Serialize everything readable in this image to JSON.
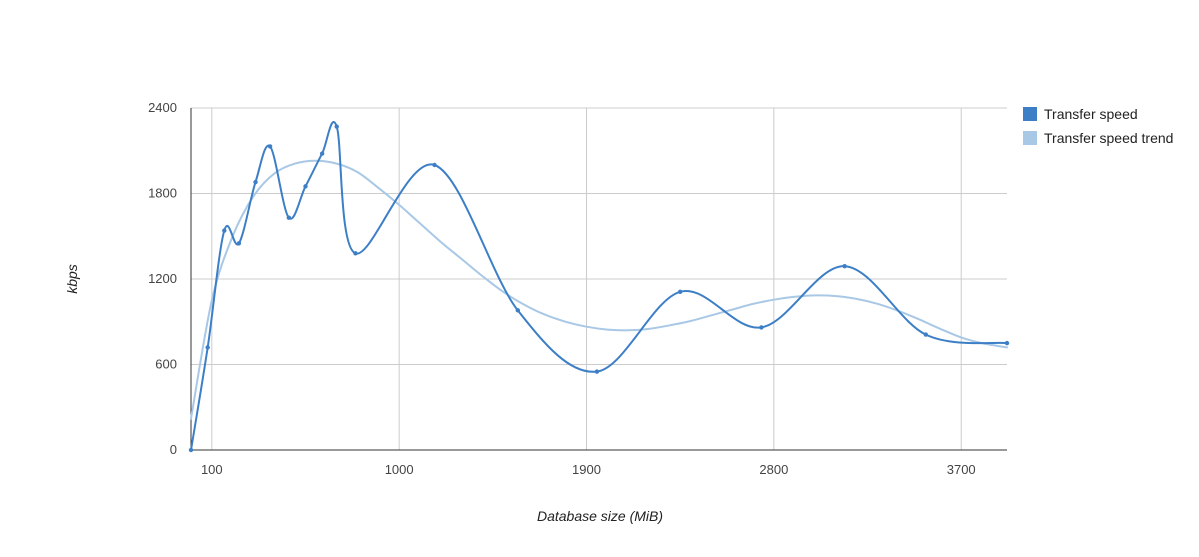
{
  "chart_data": {
    "type": "line",
    "title": "",
    "xlabel": "Database size (MiB)",
    "ylabel": "kbps",
    "xlim": [
      0,
      3920
    ],
    "ylim": [
      0,
      2400
    ],
    "x_ticks": [
      100,
      1000,
      1900,
      2800,
      3700
    ],
    "y_ticks": [
      0,
      600,
      1200,
      1800,
      2400
    ],
    "grid": true,
    "legend_position": "right",
    "series": [
      {
        "name": "Transfer speed",
        "color": "#3d7fc6",
        "curve": "smooth",
        "markers": true,
        "points": [
          [
            0,
            0
          ],
          [
            80,
            720
          ],
          [
            160,
            1540
          ],
          [
            230,
            1450
          ],
          [
            310,
            1880
          ],
          [
            380,
            2130
          ],
          [
            470,
            1630
          ],
          [
            550,
            1850
          ],
          [
            630,
            2080
          ],
          [
            700,
            2270
          ],
          [
            790,
            1380
          ],
          [
            1170,
            2000
          ],
          [
            1570,
            980
          ],
          [
            1950,
            550
          ],
          [
            2350,
            1110
          ],
          [
            2740,
            860
          ],
          [
            3140,
            1290
          ],
          [
            3530,
            810
          ],
          [
            3920,
            750
          ]
        ]
      },
      {
        "name": "Transfer speed trend",
        "color": "#a8c8e6",
        "curve": "smooth",
        "markers": false,
        "points": [
          [
            0,
            220
          ],
          [
            100,
            1050
          ],
          [
            200,
            1500
          ],
          [
            300,
            1780
          ],
          [
            400,
            1940
          ],
          [
            500,
            2010
          ],
          [
            600,
            2030
          ],
          [
            700,
            2010
          ],
          [
            800,
            1950
          ],
          [
            900,
            1840
          ],
          [
            1000,
            1720
          ],
          [
            1100,
            1590
          ],
          [
            1200,
            1460
          ],
          [
            1300,
            1340
          ],
          [
            1400,
            1220
          ],
          [
            1500,
            1110
          ],
          [
            1600,
            1020
          ],
          [
            1700,
            950
          ],
          [
            1800,
            900
          ],
          [
            1900,
            865
          ],
          [
            2000,
            845
          ],
          [
            2100,
            840
          ],
          [
            2200,
            850
          ],
          [
            2300,
            875
          ],
          [
            2400,
            905
          ],
          [
            2500,
            945
          ],
          [
            2600,
            985
          ],
          [
            2700,
            1025
          ],
          [
            2800,
            1055
          ],
          [
            2900,
            1075
          ],
          [
            3000,
            1085
          ],
          [
            3100,
            1080
          ],
          [
            3200,
            1060
          ],
          [
            3300,
            1025
          ],
          [
            3400,
            975
          ],
          [
            3500,
            915
          ],
          [
            3600,
            850
          ],
          [
            3700,
            790
          ],
          [
            3800,
            750
          ],
          [
            3920,
            720
          ]
        ]
      }
    ]
  }
}
